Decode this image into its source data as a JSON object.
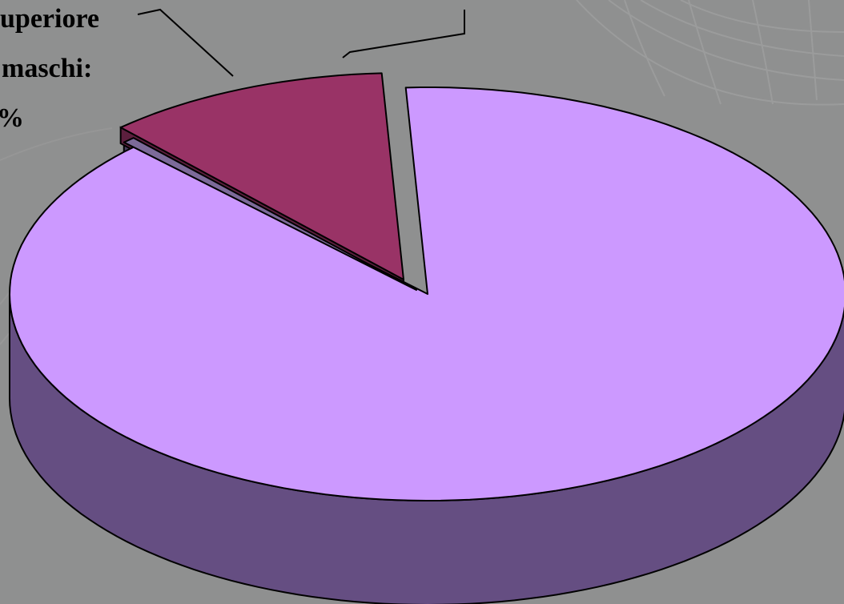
{
  "chart_data": {
    "type": "pie",
    "style": "3d-exploded",
    "slices": [
      {
        "label": "",
        "value": 88.5,
        "color": "#cc99ff",
        "side_color": "#654e82"
      },
      {
        "label": "",
        "value": 0.5,
        "color": "#7c6a99",
        "side_color": "#4a3d60"
      },
      {
        "label": "",
        "value": 11.0,
        "color": "#993366",
        "side_color": "#5d1f3e"
      }
    ],
    "label_lines": [
      "uperiore",
      "maschi:",
      "%"
    ],
    "title": "",
    "legend": "none"
  },
  "colors": {
    "background": "#8f9090",
    "background_texture": "#a3a3a3",
    "outline": "#000000"
  }
}
